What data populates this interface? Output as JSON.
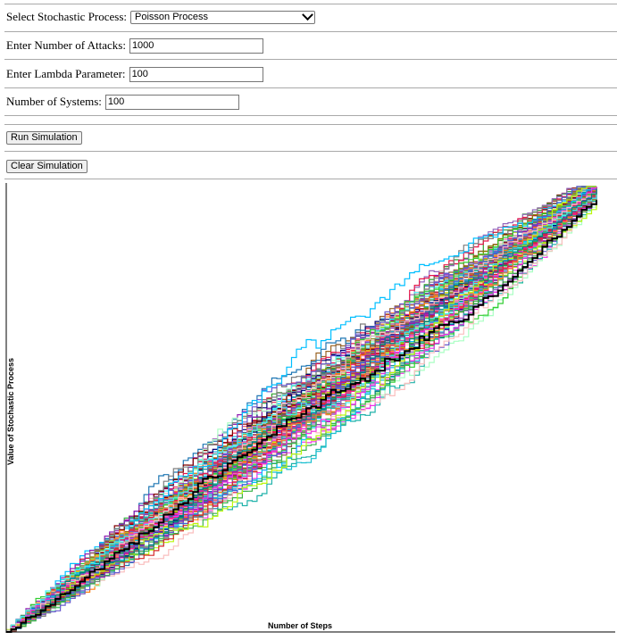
{
  "controls": {
    "process_label": "Select Stochastic Process:",
    "process_value": "Poisson Process",
    "attacks_label": "Enter Number of Attacks:",
    "attacks_value": "1000",
    "lambda_label": "Enter Lambda Parameter:",
    "lambda_value": "100",
    "systems_label": "Number of Systems:",
    "systems_value": "100",
    "run_button": "Run Simulation",
    "clear_button": "Clear Simulation"
  },
  "chart_data": {
    "type": "line",
    "title": "",
    "xlabel": "Number of Steps",
    "ylabel": "Value of Stochastic Process",
    "num_series": 100,
    "steps": 1000,
    "grid": false,
    "highlight_color": "#000000",
    "palette": [
      "#e6194b",
      "#3cb44b",
      "#4363d8",
      "#f58231",
      "#911eb4",
      "#46f0f0",
      "#f032e6",
      "#bcf60c",
      "#fabebe",
      "#008080",
      "#9a6324",
      "#800000",
      "#aaffc3",
      "#808000",
      "#000075",
      "#ff69b4",
      "#1f77b4",
      "#2ca02c",
      "#d62728",
      "#9467bd",
      "#8c564b",
      "#17becf",
      "#ff7f0e",
      "#7f7f7f",
      "#6a5acd",
      "#20b2aa",
      "#dc143c",
      "#32cd32",
      "#ff1493",
      "#00bfff"
    ]
  }
}
